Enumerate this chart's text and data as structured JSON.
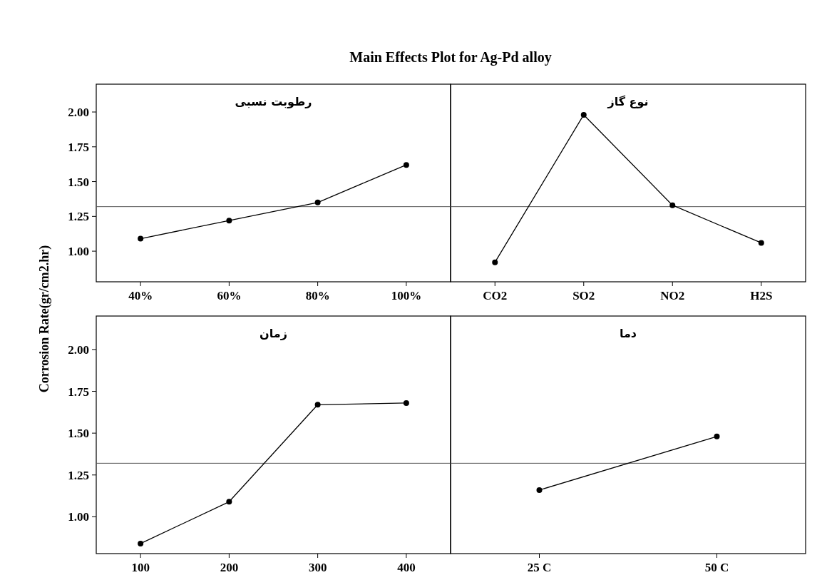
{
  "chart_data": [
    {
      "type": "line",
      "title": "رطوبت نسبی",
      "ylabel": "Corrosion Rate(gr/cm2.hr)",
      "annotations": [
        "Main Effects Plot for Ag-Pd alloy"
      ],
      "categories": [
        "40%",
        "60%",
        "80%",
        "100%"
      ],
      "series": [
        {
          "color": "#000000",
          "values": [
            1.09,
            1.22,
            1.35,
            1.62
          ]
        }
      ],
      "ylim": [
        0.78,
        2.2
      ],
      "yticks": [
        {
          "value": 1,
          "label": "1.00"
        },
        {
          "value": 1.25,
          "label": "1.25"
        },
        {
          "value": 1.5,
          "label": "1.50"
        },
        {
          "value": 1.75,
          "label": "1.75"
        },
        {
          "value": 2,
          "label": "2.00"
        }
      ],
      "ref_lines": [
        {
          "axis": "y",
          "value": 1.32
        }
      ],
      "marker": "circle"
    },
    {
      "type": "line",
      "title": "نوع گاز",
      "categories": [
        "CO2",
        "SO2",
        "NO2",
        "H2S"
      ],
      "series": [
        {
          "color": "#000000",
          "values": [
            0.92,
            1.98,
            1.33,
            1.06
          ]
        }
      ],
      "ylim": [
        0.78,
        2.2
      ],
      "ref_lines": [
        {
          "axis": "y",
          "value": 1.32
        }
      ],
      "marker": "circle",
      "tick_labels": "x"
    },
    {
      "type": "line",
      "title": "زمان",
      "categories": [
        "100",
        "200",
        "300",
        "400"
      ],
      "series": [
        {
          "color": "#000000",
          "values": [
            0.84,
            1.09,
            1.67,
            1.68
          ]
        }
      ],
      "ylim": [
        0.78,
        2.2
      ],
      "yticks": [
        {
          "value": 1,
          "label": "1.00"
        },
        {
          "value": 1.25,
          "label": "1.25"
        },
        {
          "value": 1.5,
          "label": "1.50"
        },
        {
          "value": 1.75,
          "label": "1.75"
        },
        {
          "value": 2,
          "label": "2.00"
        }
      ],
      "ref_lines": [
        {
          "axis": "y",
          "value": 1.32
        }
      ],
      "marker": "circle"
    },
    {
      "type": "line",
      "title": "دما",
      "categories": [
        "25 C",
        "50 C"
      ],
      "series": [
        {
          "color": "#000000",
          "values": [
            1.16,
            1.48
          ]
        }
      ],
      "ylim": [
        0.78,
        2.2
      ],
      "ref_lines": [
        {
          "axis": "y",
          "value": 1.32
        }
      ],
      "marker": "circle",
      "tick_labels": "x"
    }
  ]
}
